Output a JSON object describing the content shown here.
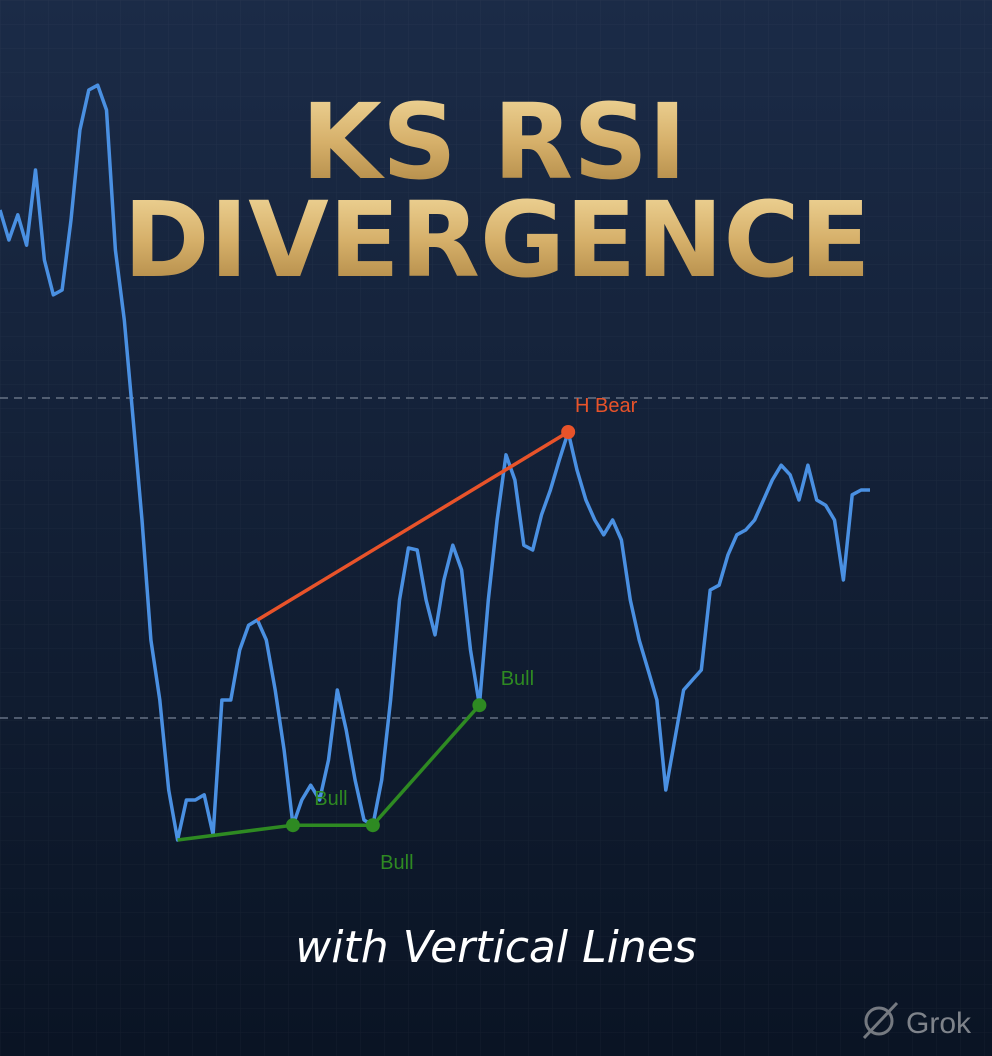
{
  "chart_data": {
    "type": "line",
    "title": [
      "KS RSI",
      "DIVERGENCE"
    ],
    "subtitle": "with Vertical Lines",
    "watermark": "Grok",
    "series": [
      {
        "color": "#4a90e2",
        "values": [
          93.5,
          89.75,
          92.9,
          89.1,
          98.5,
          87.25,
          82.9,
          83.5,
          92.25,
          103.5,
          108.5,
          109.1,
          106,
          88.5,
          79.75,
          67.25,
          54.75,
          39.75,
          32.25,
          21,
          14.75,
          19.75,
          19.75,
          20.4,
          15.4,
          32.25,
          32.25,
          38.5,
          41.6,
          42.25,
          39.75,
          33.5,
          26,
          16.6,
          19.75,
          21.6,
          19.75,
          24.75,
          33.5,
          28.5,
          22.25,
          17.25,
          16.6,
          22.25,
          32.25,
          44.75,
          51.25,
          51,
          44.75,
          40.4,
          47.25,
          51.6,
          48.5,
          38.5,
          31.6,
          44.75,
          54.75,
          62.9,
          59.75,
          51.6,
          51,
          55.4,
          58.5,
          62.25,
          65.75,
          61,
          57.25,
          54.75,
          52.9,
          54.75,
          52.25,
          44.75,
          39.75,
          36,
          32.25,
          21,
          27.25,
          33.5,
          34.75,
          36,
          46,
          46.6,
          50.4,
          52.9,
          53.5,
          54.75,
          57.25,
          59.75,
          61.6,
          60.4,
          57.25,
          61.6,
          57.25,
          56.6,
          54.75,
          47.25,
          57.9,
          58.5,
          58.5
        ]
      }
    ],
    "ylim": [
      -12.25,
      119.75
    ],
    "hlines": [
      70,
      30
    ],
    "divergences": [
      {
        "label": "H Bear",
        "color": "#e8532a",
        "points": [
          29,
          64
        ]
      },
      {
        "label": "Bull",
        "color": "#2e8a22",
        "points": [
          20,
          33
        ]
      },
      {
        "label": "Bull",
        "color": "#2e8a22",
        "points": [
          33,
          42
        ]
      },
      {
        "label": "Bull",
        "color": "#2e8a22",
        "points": [
          42,
          54
        ]
      }
    ]
  }
}
